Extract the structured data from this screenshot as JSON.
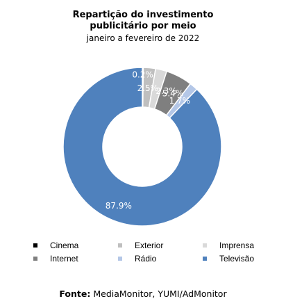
{
  "chart_data": {
    "type": "pie",
    "title": "Repartição do investimento publicitário por meio",
    "subtitle": "janeiro a fevereiro de 2022",
    "categories": [
      "Cinema",
      "Exterior",
      "Imprensa",
      "Internet",
      "Rádio",
      "Televisão"
    ],
    "values": [
      0.2,
      2.5,
      2.3,
      5.4,
      1.7,
      87.9
    ],
    "labels": [
      "0.2%",
      "2.5%",
      "2.3%",
      "5.4%",
      "1.7%",
      "87.9%"
    ],
    "colors": [
      "#000000",
      "#bfbfbf",
      "#d9d9d9",
      "#7f7f7f",
      "#b4c7e7",
      "#4f81bd"
    ],
    "legend_position": "bottom"
  },
  "title_line1": "Repartição do investimento",
  "title_line2": "publicitário por meio",
  "subtitle": "janeiro a fevereiro de 2022",
  "source_label": "Fonte:",
  "source_text": "MediaMonitor, YUMI/AdMonitor"
}
